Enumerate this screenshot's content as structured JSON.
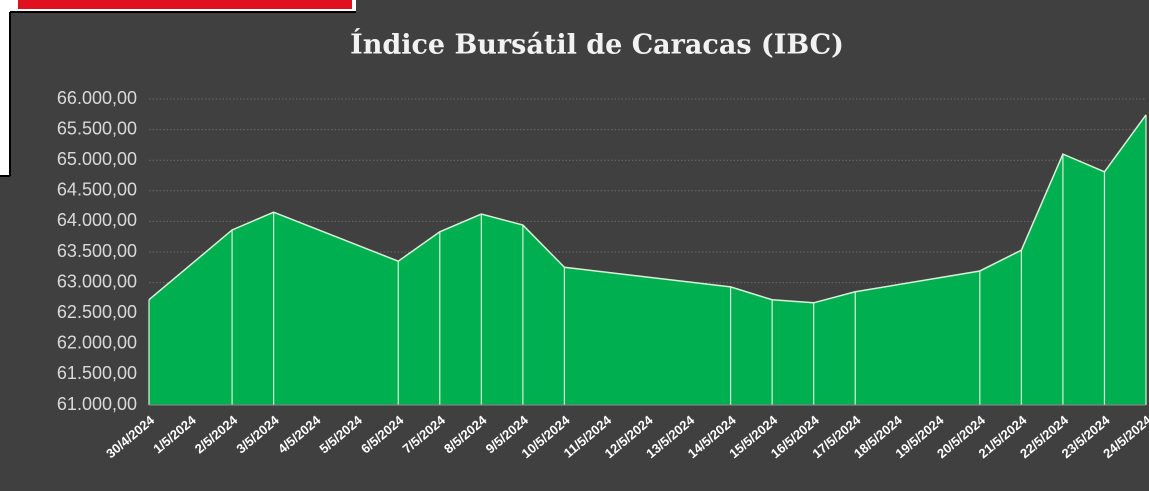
{
  "chart_data": {
    "type": "area",
    "title": "Índice Bursátil de Caracas (IBC)",
    "color": "#00b050",
    "line_color": "#d8f0d8",
    "grid": true,
    "x": [
      "30/4/2024",
      "2/5/2024",
      "3/5/2024",
      "6/5/2024",
      "7/5/2024",
      "8/5/2024",
      "9/5/2024",
      "10/5/2024",
      "14/5/2024",
      "15/5/2024",
      "16/5/2024",
      "17/5/2024",
      "20/5/2024",
      "21/5/2024",
      "22/5/2024",
      "23/5/2024",
      "24/5/2024"
    ],
    "values": [
      62720,
      63860,
      64150,
      63350,
      63830,
      64120,
      63940,
      63250,
      62930,
      62720,
      62670,
      62850,
      63190,
      63530,
      65100,
      64810,
      65740
    ],
    "xticks": [
      "30/4/2024",
      "1/5/2024",
      "2/5/2024",
      "3/5/2024",
      "4/5/2024",
      "5/5/2024",
      "6/5/2024",
      "7/5/2024",
      "8/5/2024",
      "9/5/2024",
      "10/5/2024",
      "11/5/2024",
      "12/5/2024",
      "13/5/2024",
      "14/5/2024",
      "15/5/2024",
      "16/5/2024",
      "17/5/2024",
      "18/5/2024",
      "19/5/2024",
      "20/5/2024",
      "21/5/2024",
      "22/5/2024",
      "23/5/2024",
      "24/5/2024"
    ],
    "ylim": [
      61000,
      66000
    ],
    "yticks": [
      {
        "value": 61000,
        "label": "61.000,00"
      },
      {
        "value": 61500,
        "label": "61.500,00"
      },
      {
        "value": 62000,
        "label": "62.000,00"
      },
      {
        "value": 62500,
        "label": "62.500,00"
      },
      {
        "value": 63000,
        "label": "63.000,00"
      },
      {
        "value": 63500,
        "label": "63.500,00"
      },
      {
        "value": 64000,
        "label": "64.000,00"
      },
      {
        "value": 64500,
        "label": "64.500,00"
      },
      {
        "value": 65000,
        "label": "65.000,00"
      },
      {
        "value": 65500,
        "label": "65.500,00"
      },
      {
        "value": 66000,
        "label": "66.000,00"
      }
    ]
  }
}
